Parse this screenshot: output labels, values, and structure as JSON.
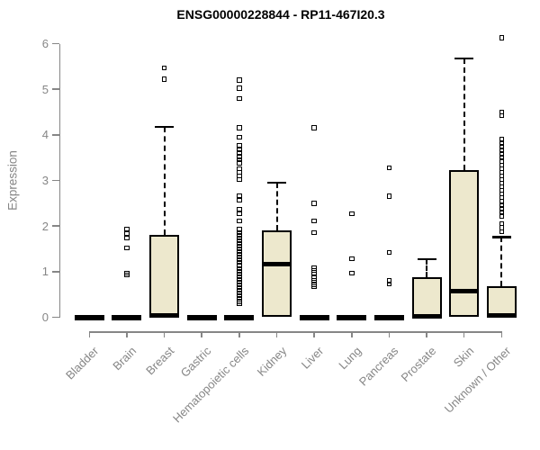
{
  "title": "ENSG00000228844 - RP11-467I20.3",
  "colors": {
    "box_fill": "#EDE8CD",
    "box_border": "#000000",
    "median": "#000000",
    "axis": "#868686",
    "title_text": "#000000",
    "background": "#ffffff"
  },
  "chart_data": {
    "type": "boxplot",
    "title": "ENSG00000228844 - RP11-467I20.3",
    "xlabel": "",
    "ylabel": "Expression",
    "ylim": [
      0,
      6
    ],
    "grid": false,
    "y_ticks": [
      "0",
      "1",
      "2",
      "3",
      "4",
      "5",
      "6"
    ],
    "categories": [
      "Bladder",
      "Brain",
      "Breast",
      "Gastric",
      "Hematopoietic cells",
      "Kidney",
      "Liver",
      "Lung",
      "Pancreas",
      "Prostate",
      "Skin",
      "Unknown / Other"
    ],
    "series": [
      {
        "name": "Bladder",
        "q1": 0,
        "median": 0,
        "q3": 0,
        "whisker_low": 0,
        "whisker_high": 0,
        "outliers": []
      },
      {
        "name": "Brain",
        "q1": 0,
        "median": 0,
        "q3": 0,
        "whisker_low": 0,
        "whisker_high": 0,
        "outliers": [
          0.93,
          0.97,
          1.52,
          1.74,
          1.84,
          1.93
        ]
      },
      {
        "name": "Breast",
        "q1": 0,
        "median": 0.03,
        "q3": 1.8,
        "whisker_low": 0,
        "whisker_high": 4.17,
        "outliers": [
          5.22,
          5.47
        ]
      },
      {
        "name": "Gastric",
        "q1": 0,
        "median": 0,
        "q3": 0,
        "whisker_low": 0,
        "whisker_high": 0,
        "outliers": []
      },
      {
        "name": "Hematopoietic cells",
        "q1": 0,
        "median": 0,
        "q3": 0,
        "whisker_low": 0,
        "whisker_high": 0,
        "outliers": [
          5.2,
          5.02,
          4.8,
          4.15,
          3.95,
          3.76,
          3.68,
          3.6,
          3.52,
          3.45,
          3.38,
          3.26,
          3.18,
          3.1,
          3.02,
          2.65,
          2.58,
          2.36,
          2.28,
          2.11,
          1.92,
          1.86,
          1.8,
          1.74,
          1.68,
          1.62,
          1.56,
          1.5,
          1.44,
          1.38,
          1.32,
          1.26,
          1.2,
          1.13,
          1.07,
          1.01,
          0.95,
          0.89,
          0.83,
          0.77,
          0.71,
          0.65,
          0.59,
          0.53,
          0.47,
          0.41,
          0.35,
          0.3
        ]
      },
      {
        "name": "Kidney",
        "q1": 0,
        "median": 1.17,
        "q3": 1.9,
        "whisker_low": 0,
        "whisker_high": 2.95,
        "outliers": []
      },
      {
        "name": "Liver",
        "q1": 0,
        "median": 0,
        "q3": 0,
        "whisker_low": 0,
        "whisker_high": 0,
        "outliers": [
          4.15,
          2.5,
          2.11,
          1.86,
          1.08,
          1.03,
          0.98,
          0.86,
          0.8,
          0.72,
          0.67
        ]
      },
      {
        "name": "Lung",
        "q1": 0,
        "median": 0,
        "q3": 0,
        "whisker_low": 0,
        "whisker_high": 0,
        "outliers": [
          2.27,
          1.28,
          0.97
        ]
      },
      {
        "name": "Pancreas",
        "q1": 0,
        "median": 0,
        "q3": 0,
        "whisker_low": 0,
        "whisker_high": 0,
        "outliers": [
          3.28,
          2.65,
          1.42,
          0.8,
          0.73
        ]
      },
      {
        "name": "Prostate",
        "q1": 0,
        "median": 0.02,
        "q3": 0.88,
        "whisker_low": 0,
        "whisker_high": 1.27,
        "outliers": []
      },
      {
        "name": "Skin",
        "q1": 0,
        "median": 0.57,
        "q3": 3.23,
        "whisker_low": 0,
        "whisker_high": 5.67,
        "outliers": []
      },
      {
        "name": "Unknown / Other",
        "q1": 0,
        "median": 0.03,
        "q3": 0.68,
        "whisker_low": 0,
        "whisker_high": 1.76,
        "outliers": [
          6.13,
          4.5,
          4.42,
          3.9,
          3.82,
          3.74,
          3.66,
          3.58,
          3.5,
          3.42,
          3.34,
          3.26,
          3.18,
          3.1,
          3.02,
          2.94,
          2.86,
          2.78,
          2.7,
          2.62,
          2.54,
          2.46,
          2.38,
          2.3,
          2.22,
          2.05,
          1.96,
          1.87
        ]
      }
    ]
  }
}
